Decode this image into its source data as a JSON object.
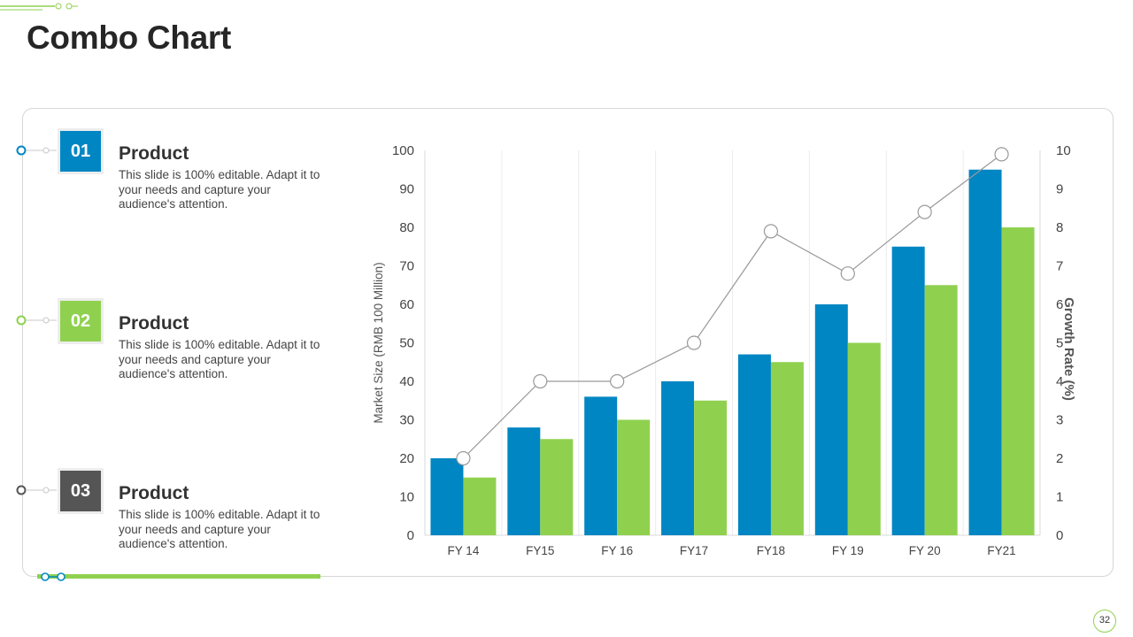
{
  "title": "Combo Chart",
  "page_number": "32",
  "items": [
    {
      "number": "01",
      "title": "Product",
      "description": "This slide is 100% editable. Adapt it to your needs and capture your audience's attention.",
      "color": "#0086c3"
    },
    {
      "number": "02",
      "title": "Product",
      "description": "This slide is 100% editable. Adapt it to your needs and capture your audience's attention.",
      "color": "#8fd14f"
    },
    {
      "number": "03",
      "title": "Product",
      "description": "This slide is 100% editable. Adapt it to your needs and capture your audience's attention.",
      "color": "#555555"
    }
  ],
  "colors": {
    "blue": "#0086c3",
    "green": "#8fd14f",
    "line": "#999999",
    "dark": "#555555"
  },
  "chart_data": {
    "type": "bar",
    "categories": [
      "FY 14",
      "FY15",
      "FY 16",
      "FY17",
      "FY18",
      "FY 19",
      "FY 20",
      "FY21"
    ],
    "series": [
      {
        "type": "bar",
        "axis": "left",
        "color": "#0086c3",
        "values": [
          20,
          28,
          36,
          40,
          47,
          60,
          75,
          95
        ]
      },
      {
        "type": "bar",
        "axis": "left",
        "color": "#8fd14f",
        "values": [
          15,
          25,
          30,
          35,
          45,
          50,
          65,
          80
        ]
      },
      {
        "type": "line",
        "axis": "right",
        "color": "#999999",
        "values": [
          2,
          4,
          4,
          5,
          7.9,
          6.8,
          8.4,
          9.9
        ]
      }
    ],
    "ylabel": "Market Size (RMB 100 Million)",
    "y2label": "Growth Rate (%)",
    "ylim": [
      0,
      100
    ],
    "y2lim": [
      0,
      10
    ],
    "yticks": [
      "0",
      "10",
      "20",
      "30",
      "40",
      "50",
      "60",
      "70",
      "80",
      "90",
      "100"
    ],
    "y2ticks": [
      "0",
      "1",
      "2",
      "3",
      "4",
      "5",
      "6",
      "7",
      "8",
      "9",
      "10"
    ],
    "grid": "vertical"
  }
}
